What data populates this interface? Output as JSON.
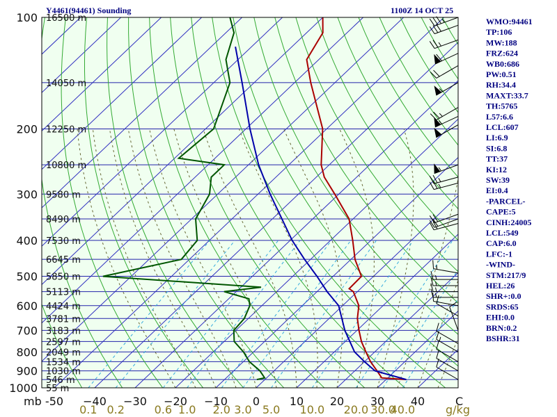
{
  "chart_data": {
    "type": "line",
    "title": "Y4461(94461) Sounding",
    "timestamp": "1100Z 14 OCT 25",
    "pressure_unit_label": "mb",
    "mixing_unit_label": "g/kg",
    "pressure_ticks": [
      100,
      200,
      300,
      400,
      500,
      600,
      700,
      800,
      900,
      1000
    ],
    "pressure_range": [
      100,
      1000
    ],
    "temperature_ticks": [
      -50,
      -40,
      -30,
      -20,
      -10,
      0,
      10,
      20,
      30,
      40
    ],
    "temperature_tick_labels": [
      "-50",
      "−40",
      "−30",
      "−20",
      "−10",
      "0",
      "10",
      "20",
      "30",
      "40"
    ],
    "temperature_extra_label": "C",
    "mixing_ratio_ticks": [
      {
        "label": "0.1",
        "value": 0.1
      },
      {
        "label": "0.2",
        "value": 0.2
      },
      {
        "label": "0.6",
        "value": 0.6
      },
      {
        "label": "1.0",
        "value": 1.0
      },
      {
        "label": "2.0",
        "value": 2.0
      },
      {
        "label": "3.0",
        "value": 3.0
      },
      {
        "label": "5.0",
        "value": 5.0
      },
      {
        "label": "10.0",
        "value": 10.0
      },
      {
        "label": "20.0",
        "value": 20.0
      },
      {
        "label": "30.0",
        "value": 30.0
      },
      {
        "label": "40.0",
        "value": 40.0
      }
    ],
    "height_levels": [
      {
        "label": "16500 m",
        "p": 100
      },
      {
        "label": "14050 m",
        "p": 150
      },
      {
        "label": "12250 m",
        "p": 200
      },
      {
        "label": "10800 m",
        "p": 250
      },
      {
        "label": "9580 m",
        "p": 300
      },
      {
        "label": "8490 m",
        "p": 350
      },
      {
        "label": "7530 m",
        "p": 400
      },
      {
        "label": "6645 m",
        "p": 450
      },
      {
        "label": "5850 m",
        "p": 500
      },
      {
        "label": "5113 m",
        "p": 550
      },
      {
        "label": "4424 m",
        "p": 600
      },
      {
        "label": "3781 m",
        "p": 650
      },
      {
        "label": "3183 m",
        "p": 700
      },
      {
        "label": "2597 m",
        "p": 750
      },
      {
        "label": "2049 m",
        "p": 800
      },
      {
        "label": "1534 m",
        "p": 850
      },
      {
        "label": "1030 m",
        "p": 900
      },
      {
        "label": "546 m",
        "p": 950
      },
      {
        "label": "55 m",
        "p": 1000
      }
    ],
    "series": [
      {
        "role": "temperature",
        "color": "#aa0000",
        "points": [
          {
            "p": 950,
            "t": 35.0
          },
          {
            "p": 940,
            "t": 28.5
          },
          {
            "p": 900,
            "t": 25.5
          },
          {
            "p": 850,
            "t": 21.5
          },
          {
            "p": 800,
            "t": 17.8
          },
          {
            "p": 750,
            "t": 14.0
          },
          {
            "p": 700,
            "t": 10.5
          },
          {
            "p": 650,
            "t": 7.0
          },
          {
            "p": 600,
            "t": 4.0
          },
          {
            "p": 550,
            "t": -1.0
          },
          {
            "p": 540,
            "t": -2.8
          },
          {
            "p": 500,
            "t": -3.0
          },
          {
            "p": 450,
            "t": -9.0
          },
          {
            "p": 400,
            "t": -14.5
          },
          {
            "p": 350,
            "t": -21.0
          },
          {
            "p": 300,
            "t": -31.0
          },
          {
            "p": 270,
            "t": -38.0
          },
          {
            "p": 250,
            "t": -42.0
          },
          {
            "p": 200,
            "t": -51.0
          },
          {
            "p": 150,
            "t": -66.0
          },
          {
            "p": 130,
            "t": -73.0
          },
          {
            "p": 110,
            "t": -76.0
          },
          {
            "p": 100,
            "t": -80.0
          }
        ]
      },
      {
        "role": "dewpoint",
        "color": "#005500",
        "points": [
          {
            "p": 950,
            "t": -2.0
          },
          {
            "p": 940,
            "t": -0.5
          },
          {
            "p": 900,
            "t": -3.5
          },
          {
            "p": 850,
            "t": -8.5
          },
          {
            "p": 800,
            "t": -12.5
          },
          {
            "p": 750,
            "t": -17.5
          },
          {
            "p": 700,
            "t": -20.5
          },
          {
            "p": 650,
            "t": -21.0
          },
          {
            "p": 600,
            "t": -23.0
          },
          {
            "p": 575,
            "t": -25.0
          },
          {
            "p": 550,
            "t": -33.0
          },
          {
            "p": 535,
            "t": -25.0
          },
          {
            "p": 500,
            "t": -67.0
          },
          {
            "p": 450,
            "t": -52.0
          },
          {
            "p": 400,
            "t": -53.0
          },
          {
            "p": 350,
            "t": -59.0
          },
          {
            "p": 300,
            "t": -62.0
          },
          {
            "p": 270,
            "t": -66.0
          },
          {
            "p": 250,
            "t": -66.0
          },
          {
            "p": 240,
            "t": -79.0
          },
          {
            "p": 200,
            "t": -78.0
          },
          {
            "p": 150,
            "t": -86.0
          },
          {
            "p": 130,
            "t": -93.0
          },
          {
            "p": 110,
            "t": -98.0
          },
          {
            "p": 100,
            "t": -103.0
          }
        ]
      },
      {
        "role": "parcel",
        "color": "#0000aa",
        "points": [
          {
            "p": 950,
            "t": 35.0
          },
          {
            "p": 900,
            "t": 25.0
          },
          {
            "p": 850,
            "t": 20.0
          },
          {
            "p": 800,
            "t": 15.0
          },
          {
            "p": 700,
            "t": 7.0
          },
          {
            "p": 600,
            "t": -1.0
          },
          {
            "p": 550,
            "t": -7.5
          },
          {
            "p": 500,
            "t": -14.0
          },
          {
            "p": 450,
            "t": -21.5
          },
          {
            "p": 400,
            "t": -29.5
          },
          {
            "p": 300,
            "t": -47.0
          },
          {
            "p": 250,
            "t": -57.5
          },
          {
            "p": 200,
            "t": -69.0
          },
          {
            "p": 150,
            "t": -83.0
          },
          {
            "p": 120,
            "t": -94.0
          }
        ]
      }
    ],
    "wind_barbs": [
      {
        "p": 100,
        "dir": 250,
        "kt": 35
      },
      {
        "p": 105,
        "dir": 250,
        "kt": 30
      },
      {
        "p": 115,
        "dir": 250,
        "kt": 25
      },
      {
        "p": 125,
        "dir": 245,
        "kt": 60
      },
      {
        "p": 135,
        "dir": 240,
        "kt": 20
      },
      {
        "p": 150,
        "dir": 240,
        "kt": 55
      },
      {
        "p": 175,
        "dir": 240,
        "kt": 25
      },
      {
        "p": 185,
        "dir": 245,
        "kt": 55
      },
      {
        "p": 195,
        "dir": 240,
        "kt": 50
      },
      {
        "p": 250,
        "dir": 250,
        "kt": 55
      },
      {
        "p": 270,
        "dir": 255,
        "kt": 25
      },
      {
        "p": 280,
        "dir": 255,
        "kt": 25
      },
      {
        "p": 340,
        "dir": 250,
        "kt": 20
      },
      {
        "p": 350,
        "dir": 250,
        "kt": 20
      },
      {
        "p": 360,
        "dir": 255,
        "kt": 20
      },
      {
        "p": 490,
        "dir": 280,
        "kt": 15
      },
      {
        "p": 510,
        "dir": 270,
        "kt": 15
      },
      {
        "p": 530,
        "dir": 270,
        "kt": 15
      },
      {
        "p": 550,
        "dir": 270,
        "kt": 15
      },
      {
        "p": 570,
        "dir": 270,
        "kt": 15
      },
      {
        "p": 600,
        "dir": 280,
        "kt": 10
      },
      {
        "p": 640,
        "dir": 300,
        "kt": 10
      },
      {
        "p": 700,
        "dir": 340,
        "kt": 10
      },
      {
        "p": 760,
        "dir": 300,
        "kt": 10
      },
      {
        "p": 800,
        "dir": 300,
        "kt": 15
      },
      {
        "p": 850,
        "dir": 300,
        "kt": 10
      },
      {
        "p": 900,
        "dir": 300,
        "kt": 10
      },
      {
        "p": 950,
        "dir": 300,
        "kt": 10
      }
    ]
  },
  "indices": [
    "WMO:94461",
    "TP:106",
    "MW:188",
    "FRZ:624",
    "WB0:686",
    "PW:0.51",
    "RH:34.4",
    "MAXT:33.7",
    "TH:5765",
    "L57:6.6",
    "LCL:607",
    "LI:6.9",
    "SI:6.8",
    "TT:37",
    "KI:12",
    "SW:39",
    "EI:0.4",
    "-PARCEL-",
    "CAPE:5",
    "CINH:24005",
    "LCL:549",
    "CAP:6.0",
    "LFC:-1",
    "-WIND-",
    "STM:217/9",
    "HEL:26",
    "SHR+:0.0",
    "SRDS:65",
    "EHI:0.0",
    "BRN:0.2",
    "BSHR:31"
  ]
}
